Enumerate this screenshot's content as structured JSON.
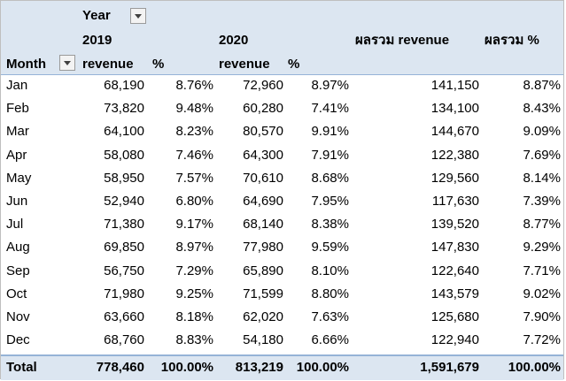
{
  "header": {
    "columns_field": "Year",
    "rows_field": "Month",
    "year_2019": "2019",
    "year_2020": "2020",
    "revenue": "revenue",
    "percent": "%",
    "sum_revenue": "ผลรวม revenue",
    "sum_percent": "ผลรวม %"
  },
  "rows": [
    {
      "month": "Jan",
      "rev2019": "68,190",
      "pct2019": "8.76%",
      "rev2020": "72,960",
      "pct2020": "8.97%",
      "sum_rev": "141,150",
      "sum_pct": "8.87%"
    },
    {
      "month": "Feb",
      "rev2019": "73,820",
      "pct2019": "9.48%",
      "rev2020": "60,280",
      "pct2020": "7.41%",
      "sum_rev": "134,100",
      "sum_pct": "8.43%"
    },
    {
      "month": "Mar",
      "rev2019": "64,100",
      "pct2019": "8.23%",
      "rev2020": "80,570",
      "pct2020": "9.91%",
      "sum_rev": "144,670",
      "sum_pct": "9.09%"
    },
    {
      "month": "Apr",
      "rev2019": "58,080",
      "pct2019": "7.46%",
      "rev2020": "64,300",
      "pct2020": "7.91%",
      "sum_rev": "122,380",
      "sum_pct": "7.69%"
    },
    {
      "month": "May",
      "rev2019": "58,950",
      "pct2019": "7.57%",
      "rev2020": "70,610",
      "pct2020": "8.68%",
      "sum_rev": "129,560",
      "sum_pct": "8.14%"
    },
    {
      "month": "Jun",
      "rev2019": "52,940",
      "pct2019": "6.80%",
      "rev2020": "64,690",
      "pct2020": "7.95%",
      "sum_rev": "117,630",
      "sum_pct": "7.39%"
    },
    {
      "month": "Jul",
      "rev2019": "71,380",
      "pct2019": "9.17%",
      "rev2020": "68,140",
      "pct2020": "8.38%",
      "sum_rev": "139,520",
      "sum_pct": "8.77%"
    },
    {
      "month": "Aug",
      "rev2019": "69,850",
      "pct2019": "8.97%",
      "rev2020": "77,980",
      "pct2020": "9.59%",
      "sum_rev": "147,830",
      "sum_pct": "9.29%"
    },
    {
      "month": "Sep",
      "rev2019": "56,750",
      "pct2019": "7.29%",
      "rev2020": "65,890",
      "pct2020": "8.10%",
      "sum_rev": "122,640",
      "sum_pct": "7.71%"
    },
    {
      "month": "Oct",
      "rev2019": "71,980",
      "pct2019": "9.25%",
      "rev2020": "71,599",
      "pct2020": "8.80%",
      "sum_rev": "143,579",
      "sum_pct": "9.02%"
    },
    {
      "month": "Nov",
      "rev2019": "63,660",
      "pct2019": "8.18%",
      "rev2020": "62,020",
      "pct2020": "7.63%",
      "sum_rev": "125,680",
      "sum_pct": "7.90%"
    },
    {
      "month": "Dec",
      "rev2019": "68,760",
      "pct2019": "8.83%",
      "rev2020": "54,180",
      "pct2020": "6.66%",
      "sum_rev": "122,940",
      "sum_pct": "7.72%"
    }
  ],
  "total": {
    "label": "Total",
    "rev2019": "778,460",
    "pct2019": "100.00%",
    "rev2020": "813,219",
    "pct2020": "100.00%",
    "sum_rev": "1,591,679",
    "sum_pct": "100.00%"
  },
  "colors": {
    "header_fill": "#dce6f1",
    "header_border": "#95b3d7"
  }
}
